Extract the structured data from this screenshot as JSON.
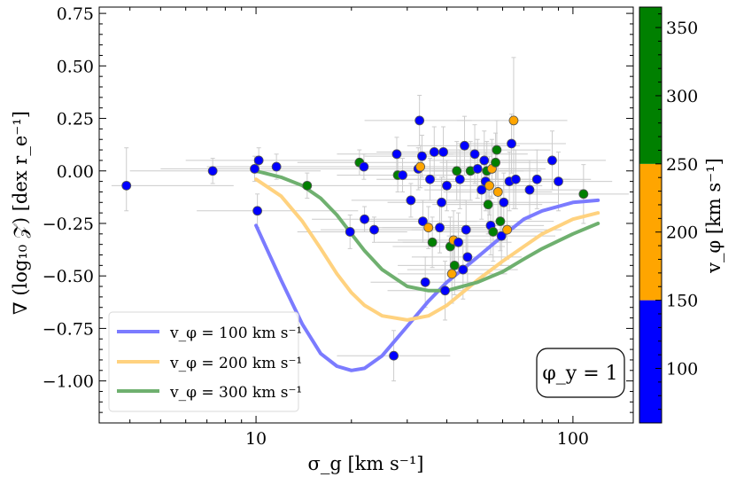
{
  "chart_data": {
    "type": "scatter",
    "xlabel": "σ_g [km s⁻¹]",
    "ylabel": "∇ (log₁₀ 𝒵)  [dex r_e⁻¹]",
    "x_scale": "log",
    "xlim": [
      3.2,
      155
    ],
    "ylim": [
      -1.2,
      0.78
    ],
    "x_ticks": [
      {
        "value": 10,
        "label": "10"
      },
      {
        "value": 100,
        "label": "100"
      }
    ],
    "y_ticks": [
      {
        "value": 0.75,
        "label": "0.75"
      },
      {
        "value": 0.5,
        "label": "0.50"
      },
      {
        "value": 0.25,
        "label": "0.25"
      },
      {
        "value": 0.0,
        "label": "0.00"
      },
      {
        "value": -0.25,
        "label": "−0.25"
      },
      {
        "value": -0.5,
        "label": "−0.50"
      },
      {
        "value": -0.75,
        "label": "−0.75"
      },
      {
        "value": -1.0,
        "label": "−1.00"
      }
    ],
    "annotation": "φ_y = 1",
    "legend_position": "lower-left",
    "colorbar": {
      "label": "v_φ [km s⁻¹]",
      "range": [
        60,
        365
      ],
      "ticks": [
        {
          "value": 100,
          "label": "100"
        },
        {
          "value": 150,
          "label": "150"
        },
        {
          "value": 200,
          "label": "200"
        },
        {
          "value": 250,
          "label": "250"
        },
        {
          "value": 300,
          "label": "300"
        },
        {
          "value": 350,
          "label": "350"
        }
      ],
      "bins": [
        {
          "from": 60,
          "to": 150,
          "color": "#0000ff"
        },
        {
          "from": 150,
          "to": 250,
          "color": "#ffa500"
        },
        {
          "from": 250,
          "to": 365,
          "color": "#008000"
        }
      ]
    },
    "colors": {
      "blue": "#0000ff",
      "orange": "#ffa500",
      "green": "#008000",
      "line_blue": "#7b7bff",
      "line_orange": "#ffd27f",
      "line_green": "#6fb06f",
      "errorbar": "#cccccc"
    },
    "series": [
      {
        "name": "v_φ = 100 km s⁻¹",
        "color": "#8080ff",
        "x": [
          10,
          12,
          14,
          16,
          18,
          20,
          22,
          25,
          30,
          35,
          40,
          50,
          60,
          70,
          80,
          100,
          120
        ],
        "y": [
          -0.26,
          -0.52,
          -0.73,
          -0.87,
          -0.93,
          -0.95,
          -0.94,
          -0.88,
          -0.74,
          -0.62,
          -0.53,
          -0.41,
          -0.31,
          -0.23,
          -0.19,
          -0.15,
          -0.14
        ]
      },
      {
        "name": "v_φ = 200 km s⁻¹",
        "color": "#ffd27f",
        "x": [
          10,
          12,
          14,
          16,
          18,
          20,
          22,
          25,
          30,
          35,
          40,
          50,
          60,
          70,
          80,
          100,
          120
        ],
        "y": [
          -0.04,
          -0.12,
          -0.24,
          -0.37,
          -0.49,
          -0.58,
          -0.64,
          -0.69,
          -0.71,
          -0.69,
          -0.64,
          -0.52,
          -0.43,
          -0.36,
          -0.3,
          -0.23,
          -0.2
        ]
      },
      {
        "name": "v_φ = 300 km s⁻¹",
        "color": "#6fb06f",
        "x": [
          10,
          12,
          14,
          16,
          18,
          20,
          22,
          25,
          30,
          35,
          40,
          50,
          60,
          70,
          80,
          100,
          120
        ],
        "y": [
          0.0,
          -0.03,
          -0.07,
          -0.13,
          -0.21,
          -0.3,
          -0.38,
          -0.47,
          -0.55,
          -0.57,
          -0.57,
          -0.53,
          -0.48,
          -0.42,
          -0.37,
          -0.3,
          -0.25
        ]
      }
    ],
    "points": [
      {
        "x": 3.9,
        "y": -0.07,
        "c": "blue",
        "xe": [
          3.5,
          8.5
        ],
        "ye": [
          0.12,
          0.18
        ]
      },
      {
        "x": 7.3,
        "y": 0.0,
        "c": "blue",
        "xe": [
          4.0,
          16
        ],
        "ye": [
          0.06,
          0.06
        ]
      },
      {
        "x": 9.9,
        "y": 0.01,
        "c": "blue",
        "xe": [
          5.0,
          21
        ],
        "ye": [
          0.06,
          0.06
        ]
      },
      {
        "x": 10.2,
        "y": 0.05,
        "c": "blue",
        "xe": [
          6.0,
          22
        ],
        "ye": [
          0.06,
          0.06
        ]
      },
      {
        "x": 10.1,
        "y": -0.19,
        "c": "blue",
        "xe": [
          6.5,
          21
        ],
        "ye": [
          0.08,
          0.08
        ]
      },
      {
        "x": 11.6,
        "y": 0.02,
        "c": "blue",
        "xe": [
          7.0,
          24
        ],
        "ye": [
          0.06,
          0.06
        ]
      },
      {
        "x": 14.5,
        "y": -0.07,
        "c": "green",
        "xe": [
          10.5,
          27
        ],
        "ye": [
          0.06,
          0.06
        ]
      },
      {
        "x": 19.8,
        "y": -0.29,
        "c": "blue",
        "xe": [
          13.5,
          30
        ],
        "ye": [
          0.08,
          0.08
        ]
      },
      {
        "x": 21.2,
        "y": 0.04,
        "c": "green",
        "xe": [
          13.5,
          33
        ],
        "ye": [
          0.06,
          0.06
        ]
      },
      {
        "x": 21.9,
        "y": 0.02,
        "c": "blue",
        "xe": [
          14.5,
          34
        ],
        "ye": [
          0.06,
          0.06
        ]
      },
      {
        "x": 22.0,
        "y": -0.23,
        "c": "blue",
        "xe": [
          15,
          33
        ],
        "ye": [
          0.06,
          0.06
        ]
      },
      {
        "x": 23.6,
        "y": -0.28,
        "c": "blue",
        "xe": [
          16,
          35
        ],
        "ye": [
          0.06,
          0.06
        ]
      },
      {
        "x": 27.2,
        "y": -0.88,
        "c": "blue",
        "xe": [
          18,
          41
        ],
        "ye": [
          0.12,
          0.12
        ]
      },
      {
        "x": 27.8,
        "y": 0.08,
        "c": "blue",
        "xe": [
          18,
          42
        ],
        "ye": [
          0.08,
          0.08
        ]
      },
      {
        "x": 28.0,
        "y": -0.02,
        "c": "green",
        "xe": [
          18,
          42
        ],
        "ye": [
          0.08,
          0.08
        ]
      },
      {
        "x": 29.0,
        "y": -0.02,
        "c": "blue",
        "xe": [
          19,
          44
        ],
        "ye": [
          0.08,
          0.08
        ]
      },
      {
        "x": 30.8,
        "y": -0.14,
        "c": "blue",
        "xe": [
          20,
          46
        ],
        "ye": [
          0.08,
          0.08
        ]
      },
      {
        "x": 32.5,
        "y": 0.01,
        "c": "blue",
        "xe": [
          21,
          48
        ],
        "ye": [
          0.1,
          0.1
        ]
      },
      {
        "x": 33.0,
        "y": 0.02,
        "c": "orange",
        "xe": [
          22,
          49
        ],
        "ye": [
          0.1,
          0.1
        ]
      },
      {
        "x": 32.8,
        "y": 0.24,
        "c": "blue",
        "xe": [
          22,
          48
        ],
        "ye": [
          0.12,
          0.12
        ]
      },
      {
        "x": 33.4,
        "y": 0.07,
        "c": "blue",
        "xe": [
          22,
          50
        ],
        "ye": [
          0.1,
          0.1
        ]
      },
      {
        "x": 33.6,
        "y": -0.24,
        "c": "blue",
        "xe": [
          22,
          50
        ],
        "ye": [
          0.1,
          0.1
        ]
      },
      {
        "x": 34.2,
        "y": -0.53,
        "c": "blue",
        "xe": [
          23,
          51
        ],
        "ye": [
          0.12,
          0.12
        ]
      },
      {
        "x": 35.0,
        "y": -0.27,
        "c": "orange",
        "xe": [
          23,
          52
        ],
        "ye": [
          0.1,
          0.1
        ]
      },
      {
        "x": 35.4,
        "y": -0.04,
        "c": "blue",
        "xe": [
          24,
          53
        ],
        "ye": [
          0.1,
          0.1
        ]
      },
      {
        "x": 36.0,
        "y": -0.34,
        "c": "green",
        "xe": [
          24,
          54
        ],
        "ye": [
          0.12,
          0.12
        ]
      },
      {
        "x": 36.5,
        "y": 0.09,
        "c": "blue",
        "xe": [
          24,
          54
        ],
        "ye": [
          0.12,
          0.12
        ]
      },
      {
        "x": 38.0,
        "y": -0.27,
        "c": "blue",
        "xe": [
          25,
          56
        ],
        "ye": [
          0.12,
          0.12
        ]
      },
      {
        "x": 38.5,
        "y": -0.15,
        "c": "blue",
        "xe": [
          26,
          57
        ],
        "ye": [
          0.12,
          0.12
        ]
      },
      {
        "x": 39.0,
        "y": 0.09,
        "c": "blue",
        "xe": [
          26,
          58
        ],
        "ye": [
          0.12,
          0.12
        ]
      },
      {
        "x": 39.5,
        "y": -0.57,
        "c": "blue",
        "xe": [
          26,
          59
        ],
        "ye": [
          0.14,
          0.14
        ]
      },
      {
        "x": 40.0,
        "y": -0.07,
        "c": "blue",
        "xe": [
          27,
          59
        ],
        "ye": [
          0.12,
          0.12
        ]
      },
      {
        "x": 41.0,
        "y": -0.36,
        "c": "green",
        "xe": [
          27,
          61
        ],
        "ye": [
          0.14,
          0.14
        ]
      },
      {
        "x": 41.5,
        "y": -0.49,
        "c": "orange",
        "xe": [
          28,
          62
        ],
        "ye": [
          0.14,
          0.14
        ]
      },
      {
        "x": 42.0,
        "y": -0.33,
        "c": "orange",
        "xe": [
          28,
          62
        ],
        "ye": [
          0.14,
          0.14
        ]
      },
      {
        "x": 42.3,
        "y": -0.45,
        "c": "green",
        "xe": [
          28,
          63
        ],
        "ye": [
          0.14,
          0.14
        ]
      },
      {
        "x": 43.0,
        "y": 0.0,
        "c": "green",
        "xe": [
          29,
          64
        ],
        "ye": [
          0.14,
          0.14
        ]
      },
      {
        "x": 43.5,
        "y": -0.34,
        "c": "blue",
        "xe": [
          29,
          64
        ],
        "ye": [
          0.14,
          0.14
        ]
      },
      {
        "x": 44.0,
        "y": -0.04,
        "c": "blue",
        "xe": [
          29,
          65
        ],
        "ye": [
          0.14,
          0.14
        ]
      },
      {
        "x": 45.0,
        "y": -0.47,
        "c": "blue",
        "xe": [
          30,
          67
        ],
        "ye": [
          0.14,
          0.14
        ]
      },
      {
        "x": 45.5,
        "y": 0.12,
        "c": "blue",
        "xe": [
          30,
          68
        ],
        "ye": [
          0.14,
          0.14
        ]
      },
      {
        "x": 46.0,
        "y": -0.28,
        "c": "blue",
        "xe": [
          31,
          68
        ],
        "ye": [
          0.14,
          0.14
        ]
      },
      {
        "x": 46.5,
        "y": -0.41,
        "c": "blue",
        "xe": [
          31,
          69
        ],
        "ye": [
          0.14,
          0.14
        ]
      },
      {
        "x": 47.5,
        "y": 0.0,
        "c": "green",
        "xe": [
          32,
          70
        ],
        "ye": [
          0.14,
          0.14
        ]
      },
      {
        "x": 49.0,
        "y": 0.08,
        "c": "blue",
        "xe": [
          33,
          72
        ],
        "ye": [
          0.14,
          0.14
        ]
      },
      {
        "x": 50.0,
        "y": 0.01,
        "c": "blue",
        "xe": [
          33,
          74
        ],
        "ye": [
          0.14,
          0.14
        ]
      },
      {
        "x": 51.5,
        "y": -0.09,
        "c": "blue",
        "xe": [
          34,
          76
        ],
        "ye": [
          0.14,
          0.14
        ]
      },
      {
        "x": 52.5,
        "y": 0.05,
        "c": "blue",
        "xe": [
          35,
          77
        ],
        "ye": [
          0.14,
          0.14
        ]
      },
      {
        "x": 53.0,
        "y": -0.05,
        "c": "blue",
        "xe": [
          35,
          78
        ],
        "ye": [
          0.14,
          0.14
        ]
      },
      {
        "x": 53.5,
        "y": 0.0,
        "c": "green",
        "xe": [
          36,
          79
        ],
        "ye": [
          0.14,
          0.14
        ]
      },
      {
        "x": 54.0,
        "y": -0.16,
        "c": "green",
        "xe": [
          36,
          80
        ],
        "ye": [
          0.14,
          0.14
        ]
      },
      {
        "x": 54.5,
        "y": -0.07,
        "c": "orange",
        "xe": [
          36,
          80
        ],
        "ye": [
          0.14,
          0.14
        ]
      },
      {
        "x": 55.0,
        "y": -0.26,
        "c": "blue",
        "xe": [
          37,
          81
        ],
        "ye": [
          0.14,
          0.14
        ]
      },
      {
        "x": 55.5,
        "y": 0.01,
        "c": "orange",
        "xe": [
          37,
          82
        ],
        "ye": [
          0.14,
          0.14
        ]
      },
      {
        "x": 56.0,
        "y": -0.29,
        "c": "green",
        "xe": [
          37,
          83
        ],
        "ye": [
          0.14,
          0.14
        ]
      },
      {
        "x": 57.0,
        "y": 0.04,
        "c": "green",
        "xe": [
          38,
          84
        ],
        "ye": [
          0.14,
          0.14
        ]
      },
      {
        "x": 57.5,
        "y": 0.1,
        "c": "green",
        "xe": [
          38,
          85
        ],
        "ye": [
          0.14,
          0.14
        ]
      },
      {
        "x": 58.0,
        "y": -0.1,
        "c": "orange",
        "xe": [
          39,
          86
        ],
        "ye": [
          0.14,
          0.14
        ]
      },
      {
        "x": 59.0,
        "y": -0.24,
        "c": "green",
        "xe": [
          39,
          87
        ],
        "ye": [
          0.14,
          0.14
        ]
      },
      {
        "x": 59.5,
        "y": -0.31,
        "c": "blue",
        "xe": [
          40,
          88
        ],
        "ye": [
          0.14,
          0.14
        ]
      },
      {
        "x": 60.5,
        "y": -0.15,
        "c": "blue",
        "xe": [
          40,
          90
        ],
        "ye": [
          0.14,
          0.14
        ]
      },
      {
        "x": 62.0,
        "y": -0.28,
        "c": "orange",
        "xe": [
          41,
          92
        ],
        "ye": [
          0.14,
          0.14
        ]
      },
      {
        "x": 63.0,
        "y": -0.05,
        "c": "blue",
        "xe": [
          42,
          93
        ],
        "ye": [
          0.14,
          0.14
        ]
      },
      {
        "x": 64.0,
        "y": 0.13,
        "c": "blue",
        "xe": [
          43,
          95
        ],
        "ye": [
          0.14,
          0.14
        ]
      },
      {
        "x": 65.0,
        "y": 0.24,
        "c": "orange",
        "xe": [
          43,
          96
        ],
        "ye": [
          0.42,
          0.3
        ]
      },
      {
        "x": 66.0,
        "y": -0.04,
        "c": "blue",
        "xe": [
          44,
          98
        ],
        "ye": [
          0.14,
          0.14
        ]
      },
      {
        "x": 73.0,
        "y": -0.09,
        "c": "blue",
        "xe": [
          49,
          108
        ],
        "ye": [
          0.14,
          0.14
        ]
      },
      {
        "x": 77.0,
        "y": -0.04,
        "c": "blue",
        "xe": [
          51,
          114
        ],
        "ye": [
          0.14,
          0.14
        ]
      },
      {
        "x": 86.0,
        "y": 0.05,
        "c": "blue",
        "xe": [
          57,
          127
        ],
        "ye": [
          0.14,
          0.14
        ]
      },
      {
        "x": 90.0,
        "y": -0.05,
        "c": "blue",
        "xe": [
          60,
          133
        ],
        "ye": [
          0.14,
          0.14
        ]
      },
      {
        "x": 108.0,
        "y": -0.11,
        "c": "green",
        "xe": [
          72,
          150
        ],
        "ye": [
          0.14,
          0.14
        ]
      }
    ]
  }
}
